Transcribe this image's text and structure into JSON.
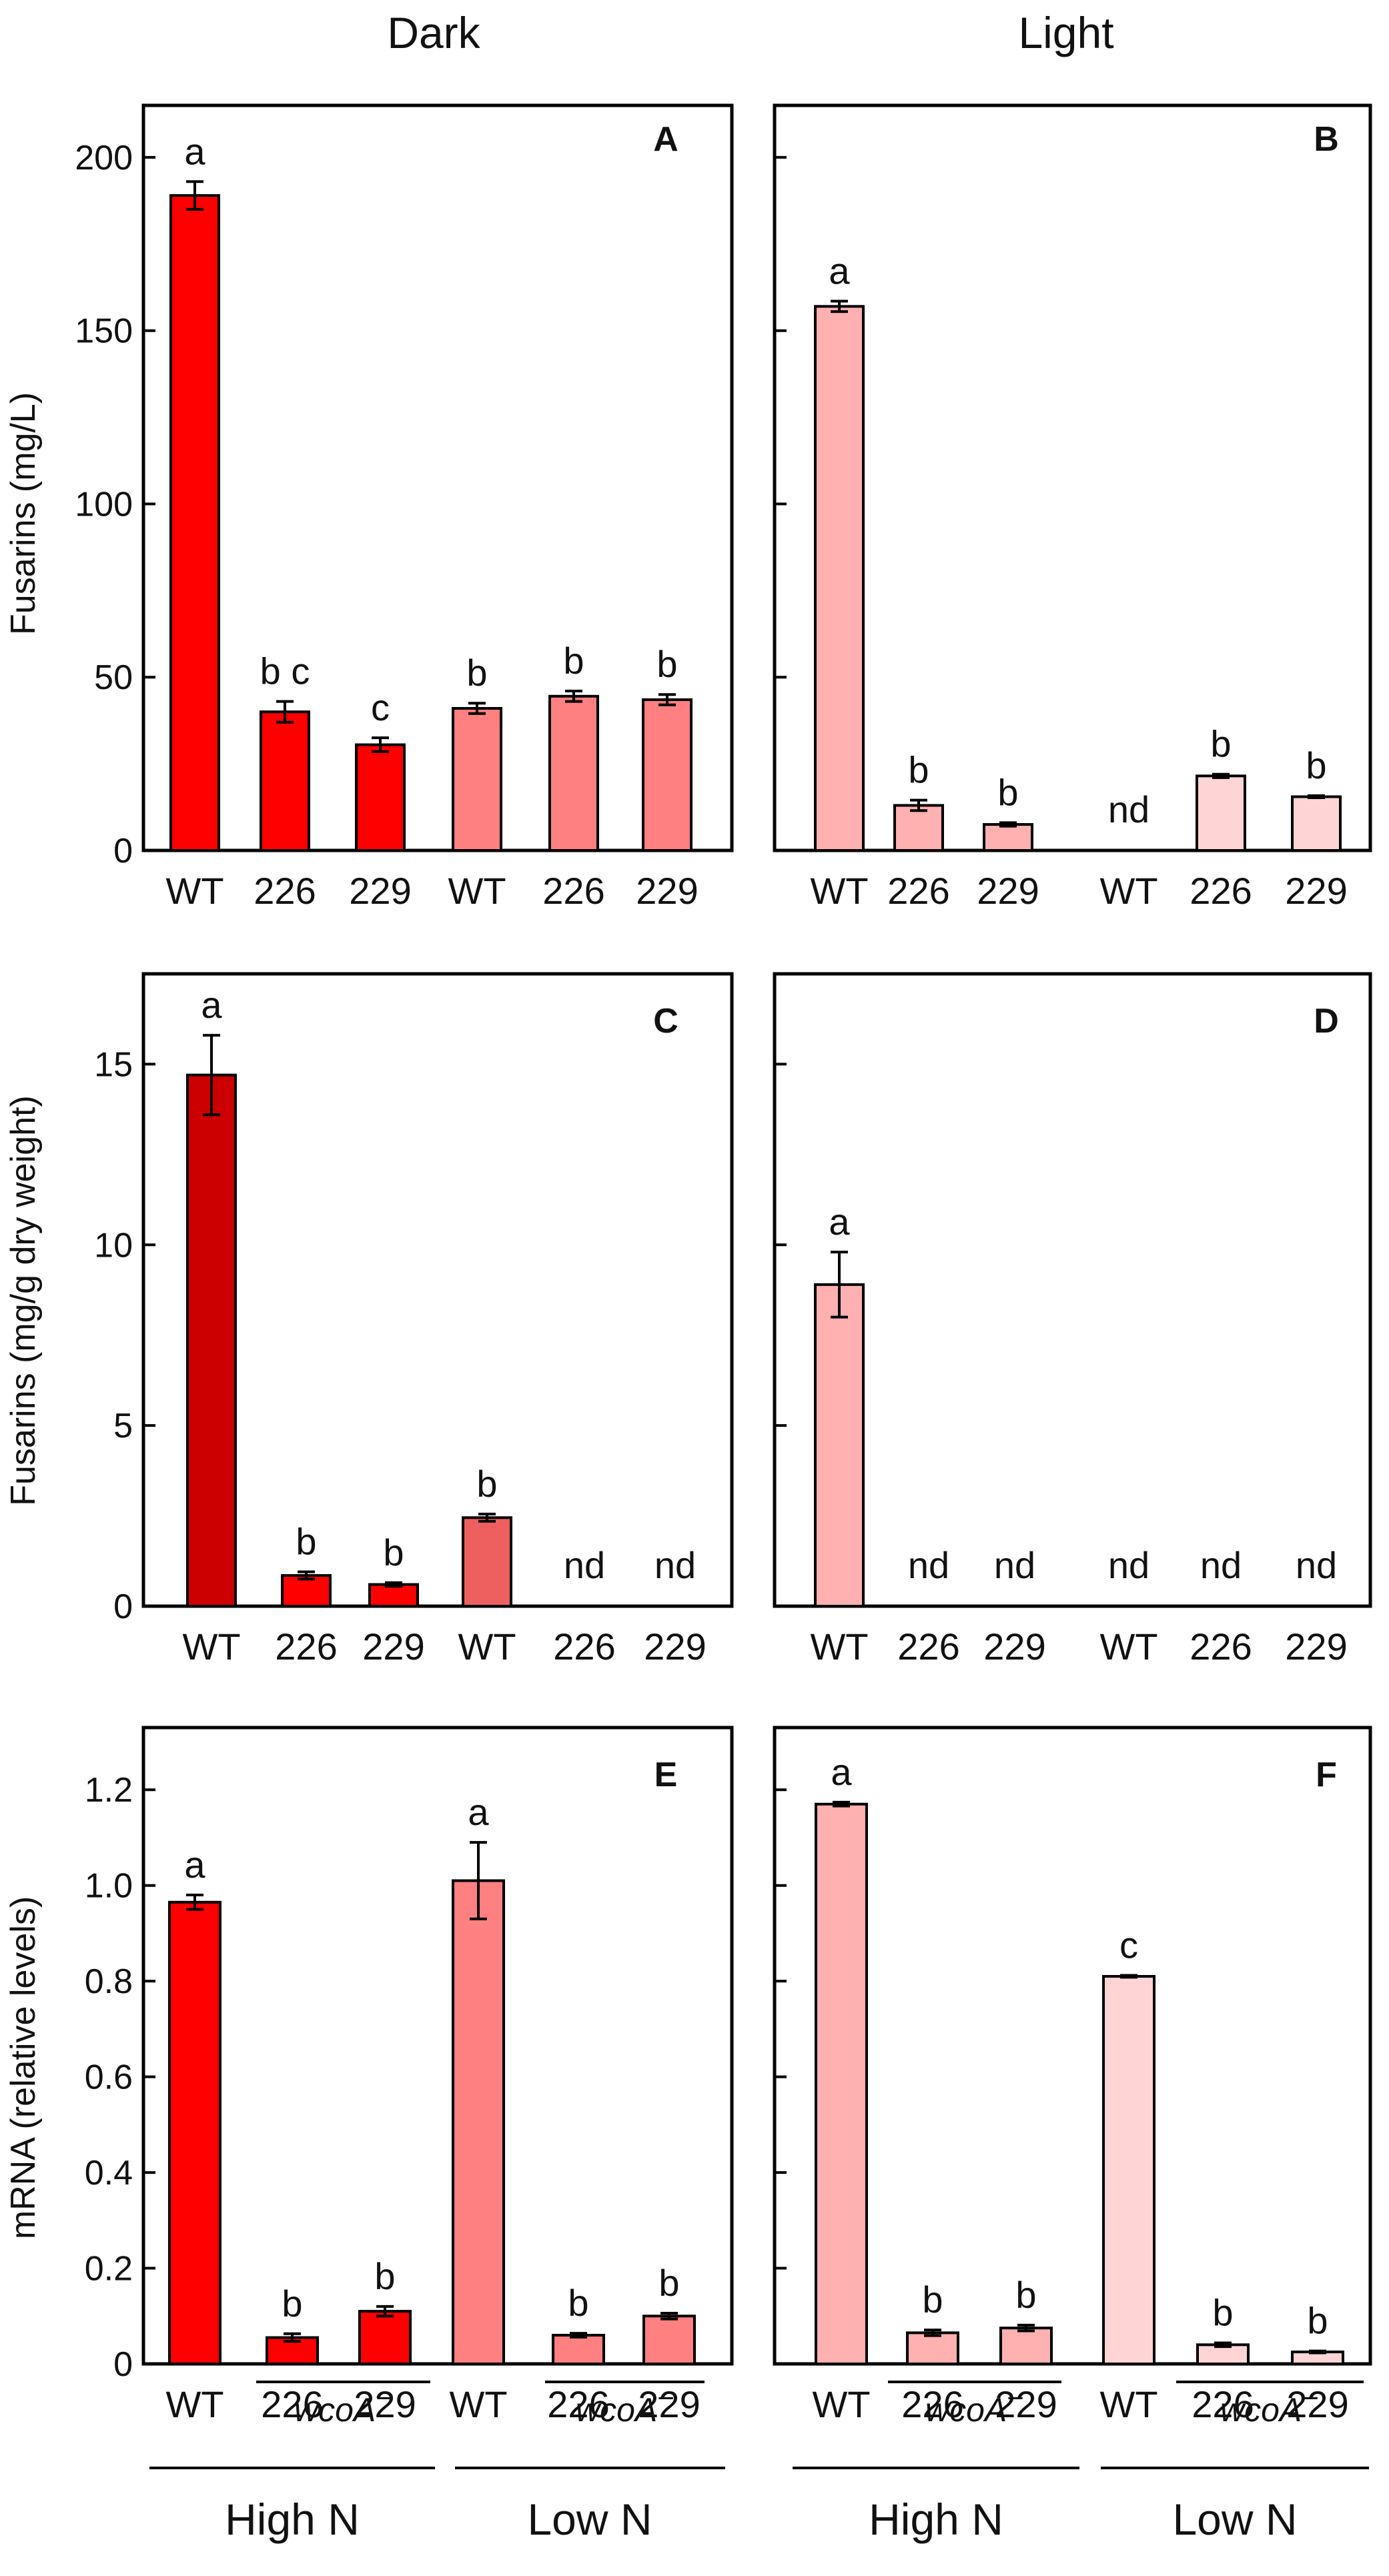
{
  "column_titles": [
    "Dark",
    "Light"
  ],
  "colors": {
    "red": "#ff0000",
    "dark_red": "#cc0000",
    "salmon": "#ff8080",
    "mid_salmon": "#ee6060",
    "pink": "#ffb0b0",
    "light_pink": "#ffd4d4"
  },
  "group_labels": {
    "genotype": "wcoA",
    "genotype_sup": "−",
    "high": "High N",
    "low": "Low N"
  },
  "chart_data": [
    {
      "panel": "A",
      "type": "bar",
      "condition": "Dark",
      "categories": [
        "WT",
        "226",
        "229",
        "WT",
        "226",
        "229"
      ],
      "values": [
        189,
        40,
        30.5,
        41,
        44.5,
        43.5
      ],
      "errors": [
        4,
        3,
        2,
        1.5,
        1.5,
        1.5
      ],
      "labels": [
        "a",
        "b c",
        "c",
        "b",
        "b",
        "b"
      ],
      "colors": [
        "#ff0000",
        "#ff0000",
        "#ff0000",
        "#ff8080",
        "#ff8080",
        "#ff8080"
      ],
      "ylabel": "Fusarins (mg/L)",
      "ylim": [
        0,
        215
      ],
      "yticks": [
        0,
        50,
        100,
        150,
        200
      ]
    },
    {
      "panel": "B",
      "type": "bar",
      "condition": "Light",
      "categories": [
        "WT",
        "226",
        "229",
        "WT",
        "226",
        "229"
      ],
      "values": [
        157,
        13,
        7.5,
        null,
        21.5,
        15.5
      ],
      "errors": [
        1.5,
        1.5,
        0.5,
        0,
        0.5,
        0.3
      ],
      "labels": [
        "a",
        "b",
        "b",
        "nd",
        "b",
        "b"
      ],
      "colors": [
        "#ffb0b0",
        "#ffb0b0",
        "#ffb0b0",
        "#ffd4d4",
        "#ffd4d4",
        "#ffd4d4"
      ],
      "ylim": [
        0,
        215
      ],
      "yticks": [
        0,
        50,
        100,
        150,
        200
      ]
    },
    {
      "panel": "C",
      "type": "bar",
      "condition": "Dark",
      "categories": [
        "WT",
        "226",
        "229",
        "WT",
        "226",
        "229"
      ],
      "values": [
        14.7,
        0.85,
        0.6,
        2.45,
        null,
        null
      ],
      "errors": [
        1.1,
        0.1,
        0.05,
        0.1,
        0,
        0
      ],
      "labels": [
        "a",
        "b",
        "b",
        "b",
        "nd",
        "nd"
      ],
      "colors": [
        "#cc0000",
        "#ff0000",
        "#ff0000",
        "#ee6060",
        "#ee6060",
        "#ee6060"
      ],
      "ylabel": "Fusarins (mg/g dry weight)",
      "ylim": [
        0,
        17.5
      ],
      "yticks": [
        0,
        5,
        10,
        15
      ]
    },
    {
      "panel": "D",
      "type": "bar",
      "condition": "Light",
      "categories": [
        "WT",
        "226",
        "229",
        "WT",
        "226",
        "229"
      ],
      "values": [
        8.9,
        null,
        null,
        null,
        null,
        null
      ],
      "errors": [
        0.9,
        0,
        0,
        0,
        0,
        0
      ],
      "labels": [
        "a",
        "nd",
        "nd",
        "nd",
        "nd",
        "nd"
      ],
      "colors": [
        "#ffb0b0",
        "#ffb0b0",
        "#ffb0b0",
        "#ffd4d4",
        "#ffd4d4",
        "#ffd4d4"
      ],
      "ylim": [
        0,
        17.5
      ],
      "yticks": [
        0,
        5,
        10,
        15
      ]
    },
    {
      "panel": "E",
      "type": "bar",
      "condition": "Dark",
      "categories": [
        "WT",
        "226",
        "229",
        "WT",
        "226",
        "229"
      ],
      "values": [
        0.965,
        0.055,
        0.11,
        1.01,
        0.06,
        0.1
      ],
      "errors": [
        0.015,
        0.008,
        0.01,
        0.08,
        0.004,
        0.006
      ],
      "labels": [
        "a",
        "b",
        "b",
        "a",
        "b",
        "b"
      ],
      "colors": [
        "#ff0000",
        "#ff0000",
        "#ff0000",
        "#ff8080",
        "#ff8080",
        "#ff8080"
      ],
      "ylabel": "mRNA (relative levels)",
      "ylim": [
        0,
        1.33
      ],
      "yticks": [
        0,
        0.2,
        0.4,
        0.6,
        0.8,
        1.0,
        1.2
      ],
      "ytick_labels": [
        "0",
        "0.2",
        "0.4",
        "0.6",
        "0.8",
        "1.0",
        "1.2"
      ]
    },
    {
      "panel": "F",
      "type": "bar",
      "condition": "Light",
      "categories": [
        "WT",
        "226",
        "229",
        "WT",
        "226",
        "229"
      ],
      "values": [
        1.17,
        0.065,
        0.075,
        0.81,
        0.04,
        0.025
      ],
      "errors": [
        0.004,
        0.006,
        0.006,
        0.002,
        0.004,
        0.002
      ],
      "labels": [
        "a",
        "b",
        "b",
        "c",
        "b",
        "b"
      ],
      "colors": [
        "#ffb0b0",
        "#ffb0b0",
        "#ffb0b0",
        "#ffd4d4",
        "#ffd4d4",
        "#ffd4d4"
      ],
      "ylim": [
        0,
        1.33
      ],
      "yticks": [
        0,
        0.2,
        0.4,
        0.6,
        0.8,
        1.0,
        1.2
      ]
    }
  ]
}
